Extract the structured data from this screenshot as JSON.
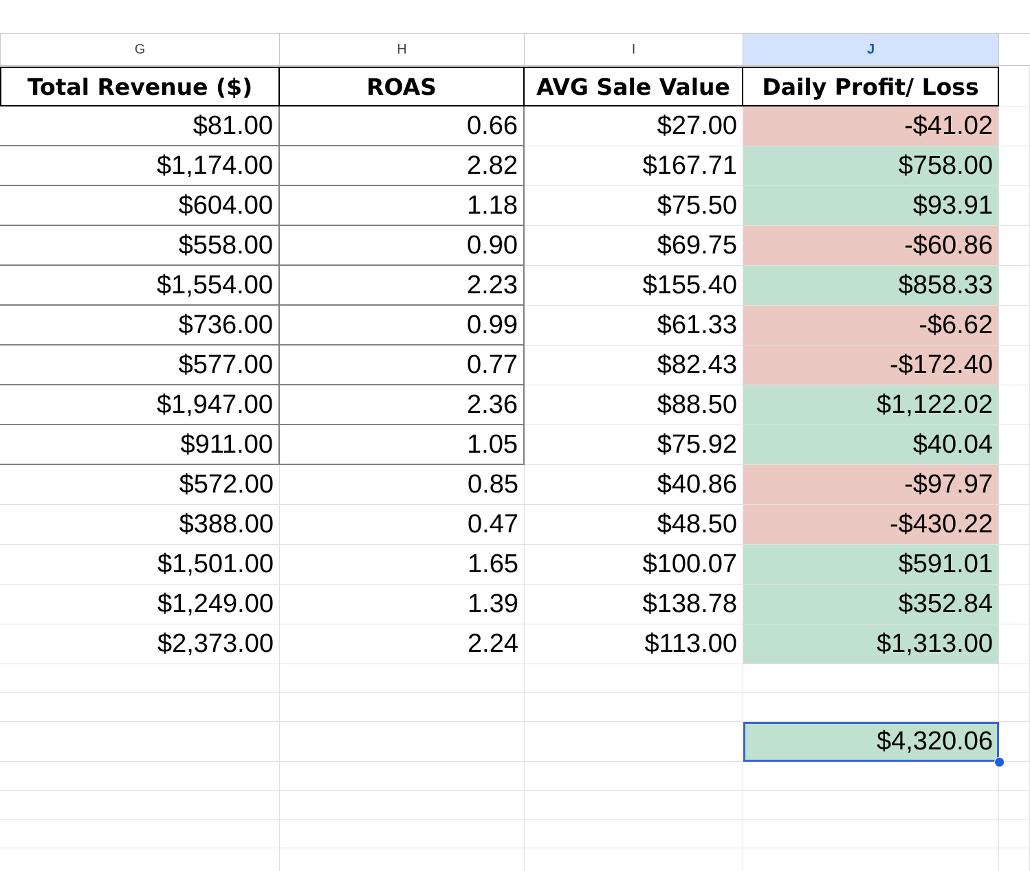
{
  "column_headers": [
    "G",
    "H",
    "I",
    "J"
  ],
  "selected_column": "J",
  "table": {
    "headers": [
      "Total Revenue ($)",
      "ROAS",
      "AVG Sale Value",
      "Daily Profit/ Loss"
    ],
    "rows": [
      {
        "revenue": "$81.00",
        "roas": "0.66",
        "avg_sale": "$27.00",
        "profit": "-$41.02",
        "profit_status": "loss"
      },
      {
        "revenue": "$1,174.00",
        "roas": "2.82",
        "avg_sale": "$167.71",
        "profit": "$758.00",
        "profit_status": "profit"
      },
      {
        "revenue": "$604.00",
        "roas": "1.18",
        "avg_sale": "$75.50",
        "profit": "$93.91",
        "profit_status": "profit"
      },
      {
        "revenue": "$558.00",
        "roas": "0.90",
        "avg_sale": "$69.75",
        "profit": "-$60.86",
        "profit_status": "loss"
      },
      {
        "revenue": "$1,554.00",
        "roas": "2.23",
        "avg_sale": "$155.40",
        "profit": "$858.33",
        "profit_status": "profit"
      },
      {
        "revenue": "$736.00",
        "roas": "0.99",
        "avg_sale": "$61.33",
        "profit": "-$6.62",
        "profit_status": "loss"
      },
      {
        "revenue": "$577.00",
        "roas": "0.77",
        "avg_sale": "$82.43",
        "profit": "-$172.40",
        "profit_status": "loss"
      },
      {
        "revenue": "$1,947.00",
        "roas": "2.36",
        "avg_sale": "$88.50",
        "profit": "$1,122.02",
        "profit_status": "profit"
      },
      {
        "revenue": "$911.00",
        "roas": "1.05",
        "avg_sale": "$75.92",
        "profit": "$40.04",
        "profit_status": "profit"
      },
      {
        "revenue": "$572.00",
        "roas": "0.85",
        "avg_sale": "$40.86",
        "profit": "-$97.97",
        "profit_status": "loss"
      },
      {
        "revenue": "$388.00",
        "roas": "0.47",
        "avg_sale": "$48.50",
        "profit": "-$430.22",
        "profit_status": "loss"
      },
      {
        "revenue": "$1,501.00",
        "roas": "1.65",
        "avg_sale": "$100.07",
        "profit": "$591.01",
        "profit_status": "profit"
      },
      {
        "revenue": "$1,249.00",
        "roas": "1.39",
        "avg_sale": "$138.78",
        "profit": "$352.84",
        "profit_status": "profit"
      },
      {
        "revenue": "$2,373.00",
        "roas": "2.24",
        "avg_sale": "$113.00",
        "profit": "$1,313.00",
        "profit_status": "profit"
      }
    ]
  },
  "total": {
    "value": "$4,320.06",
    "status": "profit",
    "selected": true
  },
  "colors": {
    "profit_fill": "#c1e1d0",
    "loss_fill": "#ecc8c2",
    "selection": "#3a67d6",
    "selected_header": "#d3e3fd"
  }
}
